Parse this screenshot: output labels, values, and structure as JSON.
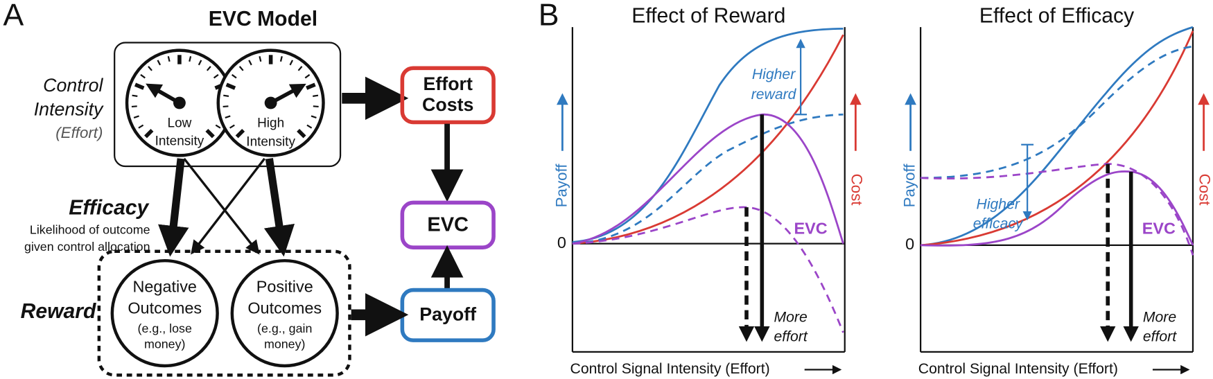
{
  "panel_a": {
    "letter": "A",
    "title": "EVC Model",
    "control_intensity": [
      "Control",
      "Intensity",
      "(Effort)"
    ],
    "gauge_low": [
      "Low",
      "Intensity"
    ],
    "gauge_high": [
      "High",
      "Intensity"
    ],
    "efficacy": {
      "title": "Efficacy",
      "description": [
        "Likelihood of outcome",
        "given control allocation"
      ]
    },
    "reward": "Reward",
    "negative_outcomes": [
      "Negative",
      "Outcomes",
      "(e.g., lose",
      "money)"
    ],
    "positive_outcomes": [
      "Positive",
      "Outcomes",
      "(e.g., gain",
      "money)"
    ],
    "effort_costs": [
      "Effort",
      "Costs"
    ],
    "evc": "EVC",
    "payoff": "Payoff"
  },
  "panel_b": {
    "letter": "B",
    "charts": [
      {
        "title": "Effect of Reward",
        "y_label": "Payoff",
        "y2_label": "Cost",
        "zero": "0",
        "x_label": "Control Signal Intensity (Effort)",
        "annotation": [
          "Higher",
          "reward"
        ],
        "evc_label": "EVC",
        "more_effort": [
          "More",
          "effort"
        ]
      },
      {
        "title": "Effect of Efficacy",
        "y_label": "Payoff",
        "y2_label": "Cost",
        "zero": "0",
        "x_label": "Control Signal Intensity (Effort)",
        "annotation": [
          "Higher",
          "efficacy"
        ],
        "evc_label": "EVC",
        "more_effort": [
          "More",
          "effort"
        ]
      }
    ]
  }
}
